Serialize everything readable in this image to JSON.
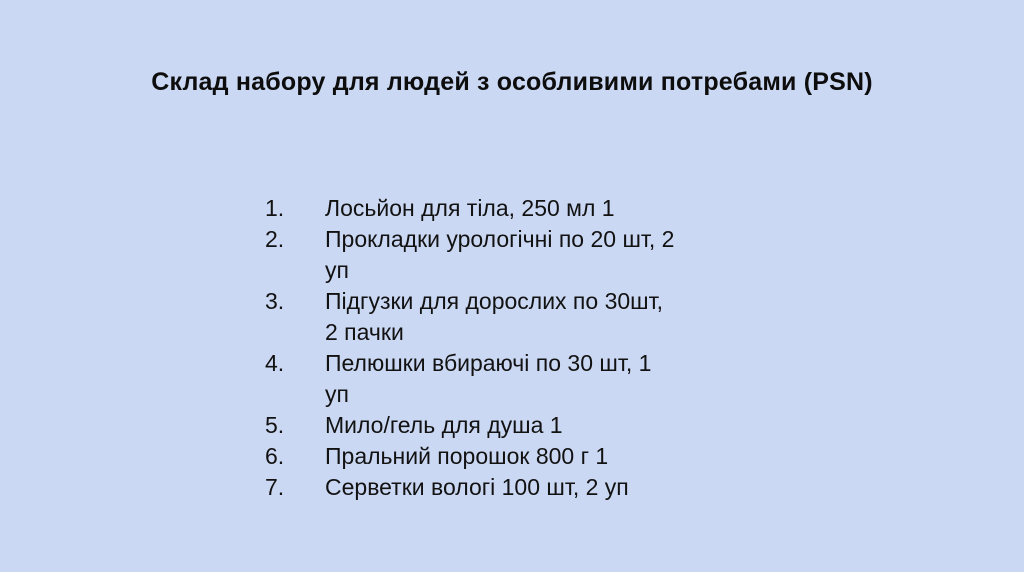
{
  "slide": {
    "background_color": "#CBD8F3",
    "text_color": "#121212",
    "title": "Склад набору для людей з особливими потребами (PSN)"
  },
  "list": {
    "items": [
      {
        "number": "1.",
        "lines": [
          "Лосьйон для тіла, 250 мл 1"
        ]
      },
      {
        "number": "2.",
        "lines": [
          "Прокладки урологічні по 20 шт, 2",
          "уп"
        ]
      },
      {
        "number": "3.",
        "lines": [
          "Підгузки для дорослих по 30шт,",
          "2 пачки"
        ]
      },
      {
        "number": "4.",
        "lines": [
          "Пелюшки вбираючі по 30 шт, 1",
          "уп"
        ]
      },
      {
        "number": "5.",
        "lines": [
          "Мило/гель для душа 1"
        ]
      },
      {
        "number": "6.",
        "lines": [
          "Пральний порошок 800 г 1"
        ]
      },
      {
        "number": "7.",
        "lines": [
          "Серветки вологі 100 шт, 2 уп"
        ]
      }
    ]
  }
}
